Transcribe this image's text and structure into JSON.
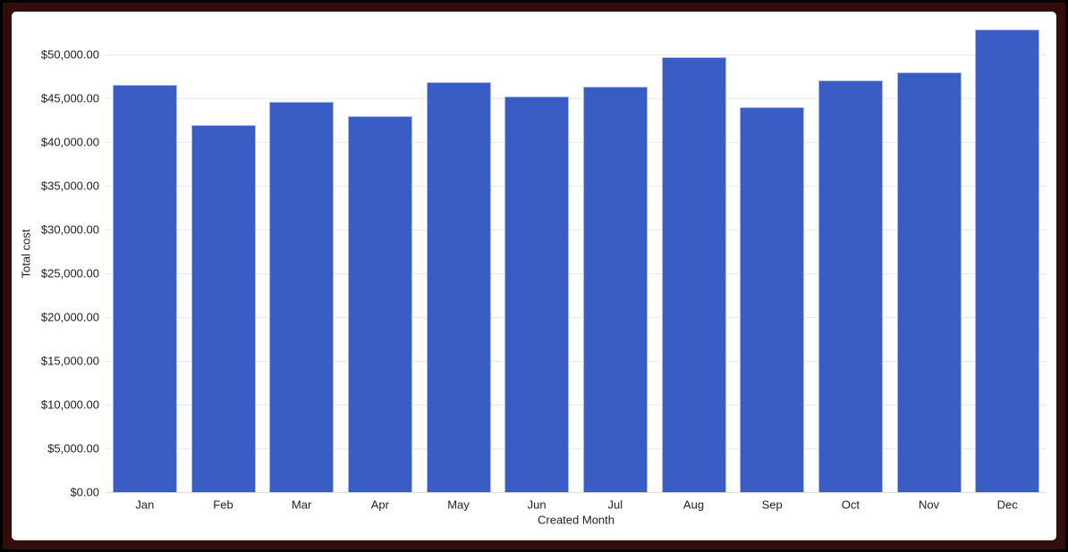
{
  "frame": {
    "outer_border_color": "#000000",
    "inner_border_color": "#330c0c",
    "canvas_color": "#ffffff"
  },
  "chart_data": {
    "type": "bar",
    "title": "",
    "xlabel": "Created Month",
    "ylabel": "Total cost",
    "categories": [
      "Jan",
      "Feb",
      "Mar",
      "Apr",
      "May",
      "Jun",
      "Jul",
      "Aug",
      "Sep",
      "Oct",
      "Nov",
      "Dec"
    ],
    "values": [
      46550,
      41900,
      44600,
      43000,
      46800,
      45250,
      46300,
      49700,
      44000,
      47050,
      48000,
      52900
    ],
    "y_ticks": [
      {
        "value": 0,
        "label": "$0.00"
      },
      {
        "value": 5000,
        "label": "$5,000.00"
      },
      {
        "value": 10000,
        "label": "$10,000.00"
      },
      {
        "value": 15000,
        "label": "$15,000.00"
      },
      {
        "value": 20000,
        "label": "$20,000.00"
      },
      {
        "value": 25000,
        "label": "$25,000.00"
      },
      {
        "value": 30000,
        "label": "$30,000.00"
      },
      {
        "value": 35000,
        "label": "$35,000.00"
      },
      {
        "value": 40000,
        "label": "$40,000.00"
      },
      {
        "value": 45000,
        "label": "$45,000.00"
      },
      {
        "value": 50000,
        "label": "$50,000.00"
      }
    ],
    "ylim": [
      0,
      53500
    ],
    "grid": true,
    "legend_position": "none",
    "bar_color": "#3a5cc5",
    "bar_edge_color": "#a9bbea",
    "gridline_color": "#e9e9e9",
    "baseline_color": "#dadada",
    "text_color": "#1f1f1f"
  }
}
